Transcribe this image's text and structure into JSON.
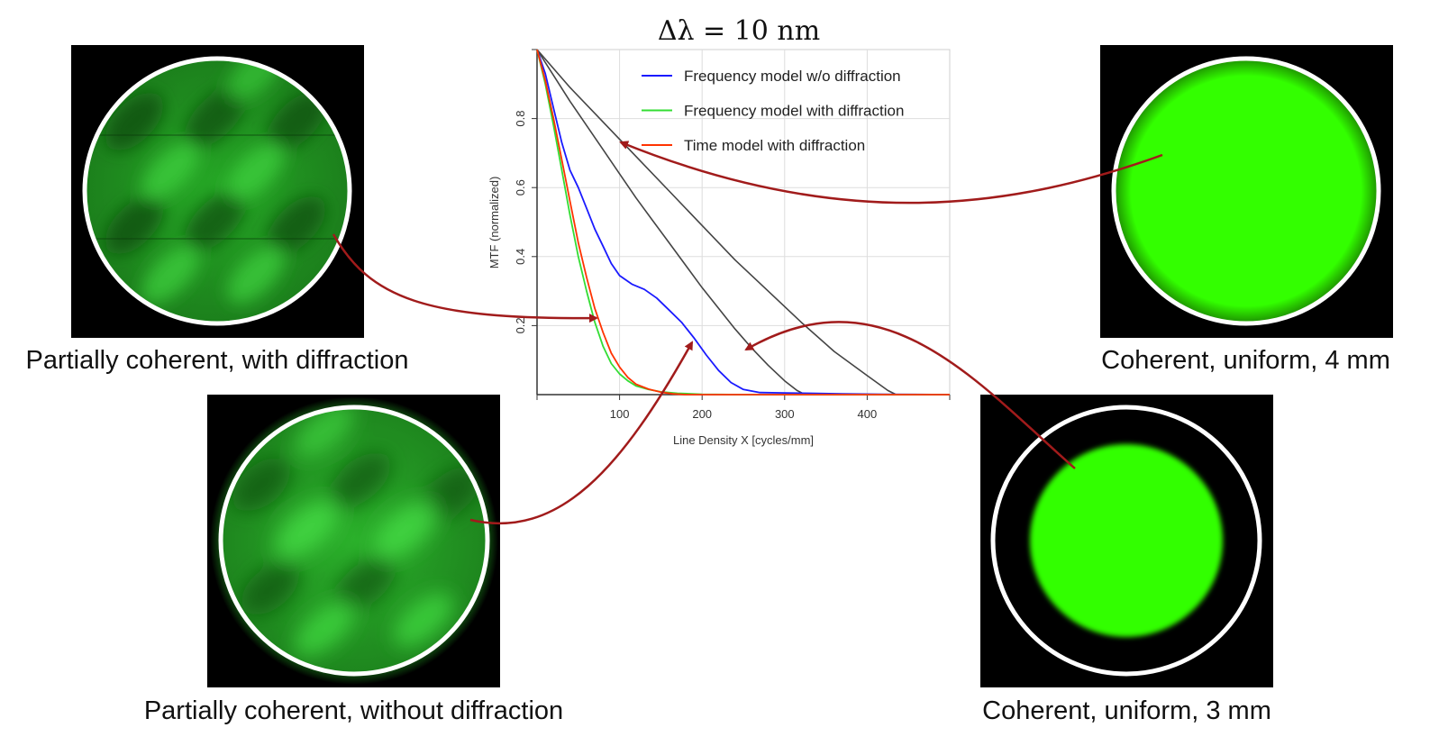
{
  "captions": {
    "top_left": "Partially coherent, with diffraction",
    "bottom_left": "Partially coherent, without diffraction",
    "top_right": "Coherent, uniform, 4 mm",
    "bottom_right": "Coherent, uniform, 3 mm"
  },
  "colors": {
    "panel_background": "#000000",
    "ring": "#ffffff",
    "uniform_green": "#33ff00",
    "arrow": "#a11b1b"
  },
  "chart_data": {
    "type": "line",
    "title": "Δλ = 10 nm",
    "xlabel": "Line Density X [cycles/mm]",
    "ylabel": "MTF (normalized)",
    "xlim": [
      0,
      500
    ],
    "ylim": [
      0,
      1
    ],
    "xticks": [
      100,
      200,
      300,
      400
    ],
    "yticks": [
      0.2,
      0.4,
      0.6,
      0.8
    ],
    "grid": true,
    "legend_position": "top-right",
    "series": [
      {
        "name": "Frequency model w/o diffraction",
        "color": "#1a1aff",
        "points": [
          [
            0,
            1
          ],
          [
            10,
            0.93
          ],
          [
            20,
            0.83
          ],
          [
            30,
            0.73
          ],
          [
            40,
            0.65
          ],
          [
            50,
            0.6
          ],
          [
            60,
            0.54
          ],
          [
            70,
            0.48
          ],
          [
            80,
            0.43
          ],
          [
            90,
            0.38
          ],
          [
            100,
            0.345
          ],
          [
            115,
            0.32
          ],
          [
            130,
            0.305
          ],
          [
            145,
            0.28
          ],
          [
            160,
            0.245
          ],
          [
            175,
            0.21
          ],
          [
            190,
            0.165
          ],
          [
            205,
            0.115
          ],
          [
            220,
            0.07
          ],
          [
            235,
            0.035
          ],
          [
            250,
            0.015
          ],
          [
            270,
            0.006
          ],
          [
            300,
            0.005
          ],
          [
            330,
            0.004
          ],
          [
            370,
            0.002
          ],
          [
            420,
            0.001
          ],
          [
            500,
            0
          ]
        ]
      },
      {
        "name": "Frequency model with diffraction",
        "color": "#33dd33",
        "points": [
          [
            0,
            1
          ],
          [
            10,
            0.9
          ],
          [
            20,
            0.78
          ],
          [
            30,
            0.65
          ],
          [
            40,
            0.52
          ],
          [
            50,
            0.4
          ],
          [
            60,
            0.3
          ],
          [
            70,
            0.21
          ],
          [
            80,
            0.14
          ],
          [
            90,
            0.09
          ],
          [
            100,
            0.06
          ],
          [
            110,
            0.04
          ],
          [
            120,
            0.025
          ],
          [
            135,
            0.015
          ],
          [
            150,
            0.008
          ],
          [
            170,
            0.004
          ],
          [
            200,
            0.001
          ],
          [
            250,
            0
          ],
          [
            500,
            0
          ]
        ]
      },
      {
        "name": "Time model with diffraction",
        "color": "#ff3300",
        "points": [
          [
            0,
            1
          ],
          [
            10,
            0.91
          ],
          [
            20,
            0.8
          ],
          [
            30,
            0.68
          ],
          [
            40,
            0.56
          ],
          [
            50,
            0.44
          ],
          [
            60,
            0.34
          ],
          [
            70,
            0.25
          ],
          [
            80,
            0.18
          ],
          [
            90,
            0.12
          ],
          [
            100,
            0.08
          ],
          [
            110,
            0.05
          ],
          [
            120,
            0.03
          ],
          [
            135,
            0.016
          ],
          [
            150,
            0.007
          ],
          [
            165,
            0.002
          ],
          [
            180,
            0
          ],
          [
            500,
            0
          ]
        ]
      },
      {
        "color": "#444444",
        "points": [
          [
            0,
            1
          ],
          [
            20,
            0.925
          ],
          [
            40,
            0.85
          ],
          [
            60,
            0.78
          ],
          [
            80,
            0.71
          ],
          [
            100,
            0.64
          ],
          [
            120,
            0.57
          ],
          [
            140,
            0.505
          ],
          [
            160,
            0.44
          ],
          [
            180,
            0.375
          ],
          [
            200,
            0.31
          ],
          [
            220,
            0.25
          ],
          [
            240,
            0.19
          ],
          [
            260,
            0.135
          ],
          [
            280,
            0.085
          ],
          [
            300,
            0.04
          ],
          [
            315,
            0.012
          ],
          [
            325,
            0
          ],
          [
            500,
            0
          ]
        ]
      },
      {
        "color": "#444444",
        "points": [
          [
            0,
            1
          ],
          [
            40,
            0.89
          ],
          [
            80,
            0.79
          ],
          [
            120,
            0.69
          ],
          [
            160,
            0.59
          ],
          [
            200,
            0.49
          ],
          [
            240,
            0.39
          ],
          [
            280,
            0.3
          ],
          [
            320,
            0.21
          ],
          [
            360,
            0.125
          ],
          [
            400,
            0.055
          ],
          [
            425,
            0.012
          ],
          [
            435,
            0
          ],
          [
            500,
            0
          ]
        ]
      }
    ]
  }
}
